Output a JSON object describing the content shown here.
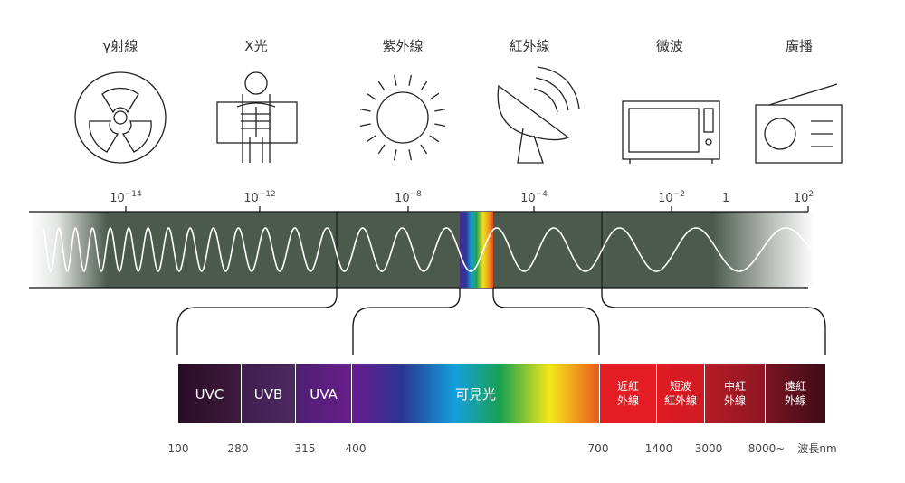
{
  "categories": [
    {
      "label": "γ射線",
      "icon": "radiation-icon"
    },
    {
      "label": "X光",
      "icon": "xray-icon"
    },
    {
      "label": "紫外線",
      "icon": "sun-icon"
    },
    {
      "label": "紅外線",
      "icon": "satellite-dish-icon"
    },
    {
      "label": "微波",
      "icon": "microwave-oven-icon"
    },
    {
      "label": "廣播",
      "icon": "radio-icon"
    }
  ],
  "scale_ticks": [
    {
      "base": "10",
      "exp": "−14"
    },
    {
      "base": "10",
      "exp": "−12"
    },
    {
      "base": "10",
      "exp": "−8"
    },
    {
      "base": "10",
      "exp": "−4"
    },
    {
      "base": "10",
      "exp": "−2"
    },
    {
      "base": "1",
      "exp": ""
    },
    {
      "base": "10",
      "exp": "2"
    }
  ],
  "segments": [
    {
      "line1": "UVC",
      "line2": "",
      "color_from": "#2a0c26",
      "color_to": "#3f1a3e"
    },
    {
      "line1": "UVB",
      "line2": "",
      "color_from": "#3e1d4e",
      "color_to": "#4c2a60"
    },
    {
      "line1": "UVA",
      "line2": "",
      "color_from": "#4f1f72",
      "color_to": "#671e8a"
    },
    {
      "line1": "可見光",
      "line2": "",
      "color_from": "#6a1a8e",
      "color_to": "#e85a1e"
    },
    {
      "line1": "近紅",
      "line2": "外線",
      "color_from": "#e41c24",
      "color_to": "#e41c24"
    },
    {
      "line1": "短波",
      "line2": "紅外線",
      "color_from": "#e01b23",
      "color_to": "#d01a22"
    },
    {
      "line1": "中紅",
      "line2": "外線",
      "color_from": "#b51b25",
      "color_to": "#8e1724"
    },
    {
      "line1": "遠紅",
      "line2": "外線",
      "color_from": "#7a1522",
      "color_to": "#3e0c18"
    }
  ],
  "wavelength_labels": [
    "100",
    "280",
    "315",
    "400",
    "700",
    "1400",
    "3000",
    "8000~",
    "波長nm"
  ],
  "colors": {
    "band": "#4b5a4c",
    "wave": "#ffffff"
  }
}
